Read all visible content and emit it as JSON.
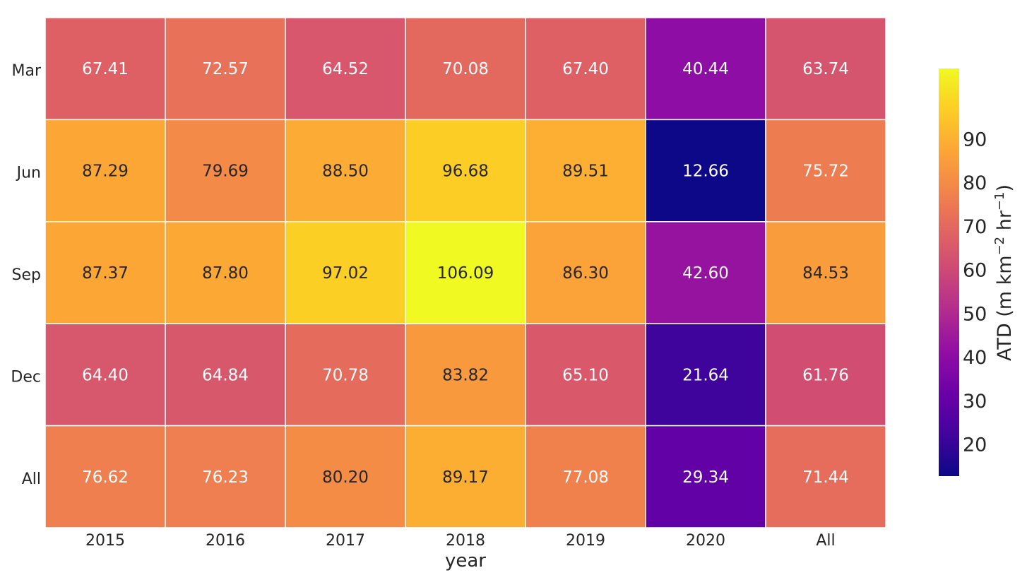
{
  "chart_data": {
    "type": "heatmap",
    "title": "",
    "xlabel": "year",
    "ylabel": "",
    "x_categories": [
      "2015",
      "2016",
      "2017",
      "2018",
      "2019",
      "2020",
      "All"
    ],
    "y_categories": [
      "Mar",
      "Jun",
      "Sep",
      "Dec",
      "All"
    ],
    "values": [
      [
        67.41,
        72.57,
        64.52,
        70.08,
        67.4,
        40.44,
        63.74
      ],
      [
        87.29,
        79.69,
        88.5,
        96.68,
        89.51,
        12.66,
        75.72
      ],
      [
        87.37,
        87.8,
        97.02,
        106.09,
        86.3,
        42.6,
        84.53
      ],
      [
        64.4,
        64.84,
        70.78,
        83.82,
        65.1,
        21.64,
        61.76
      ],
      [
        76.62,
        76.23,
        80.2,
        89.17,
        77.08,
        29.34,
        71.44
      ]
    ],
    "value_format": "0.00",
    "colormap": "plasma",
    "colorbar": {
      "label_main": "ATD (m km",
      "label_exp1": "−2",
      "label_mid": " hr",
      "label_exp2": "−1",
      "label_end": ")",
      "ticks": [
        20,
        30,
        40,
        50,
        60,
        70,
        80,
        90
      ],
      "vmin": 12.66,
      "vmax": 106.09
    },
    "grid": true,
    "annotation_colors": {
      "light": "#ffffff",
      "dark": "#262626"
    }
  }
}
